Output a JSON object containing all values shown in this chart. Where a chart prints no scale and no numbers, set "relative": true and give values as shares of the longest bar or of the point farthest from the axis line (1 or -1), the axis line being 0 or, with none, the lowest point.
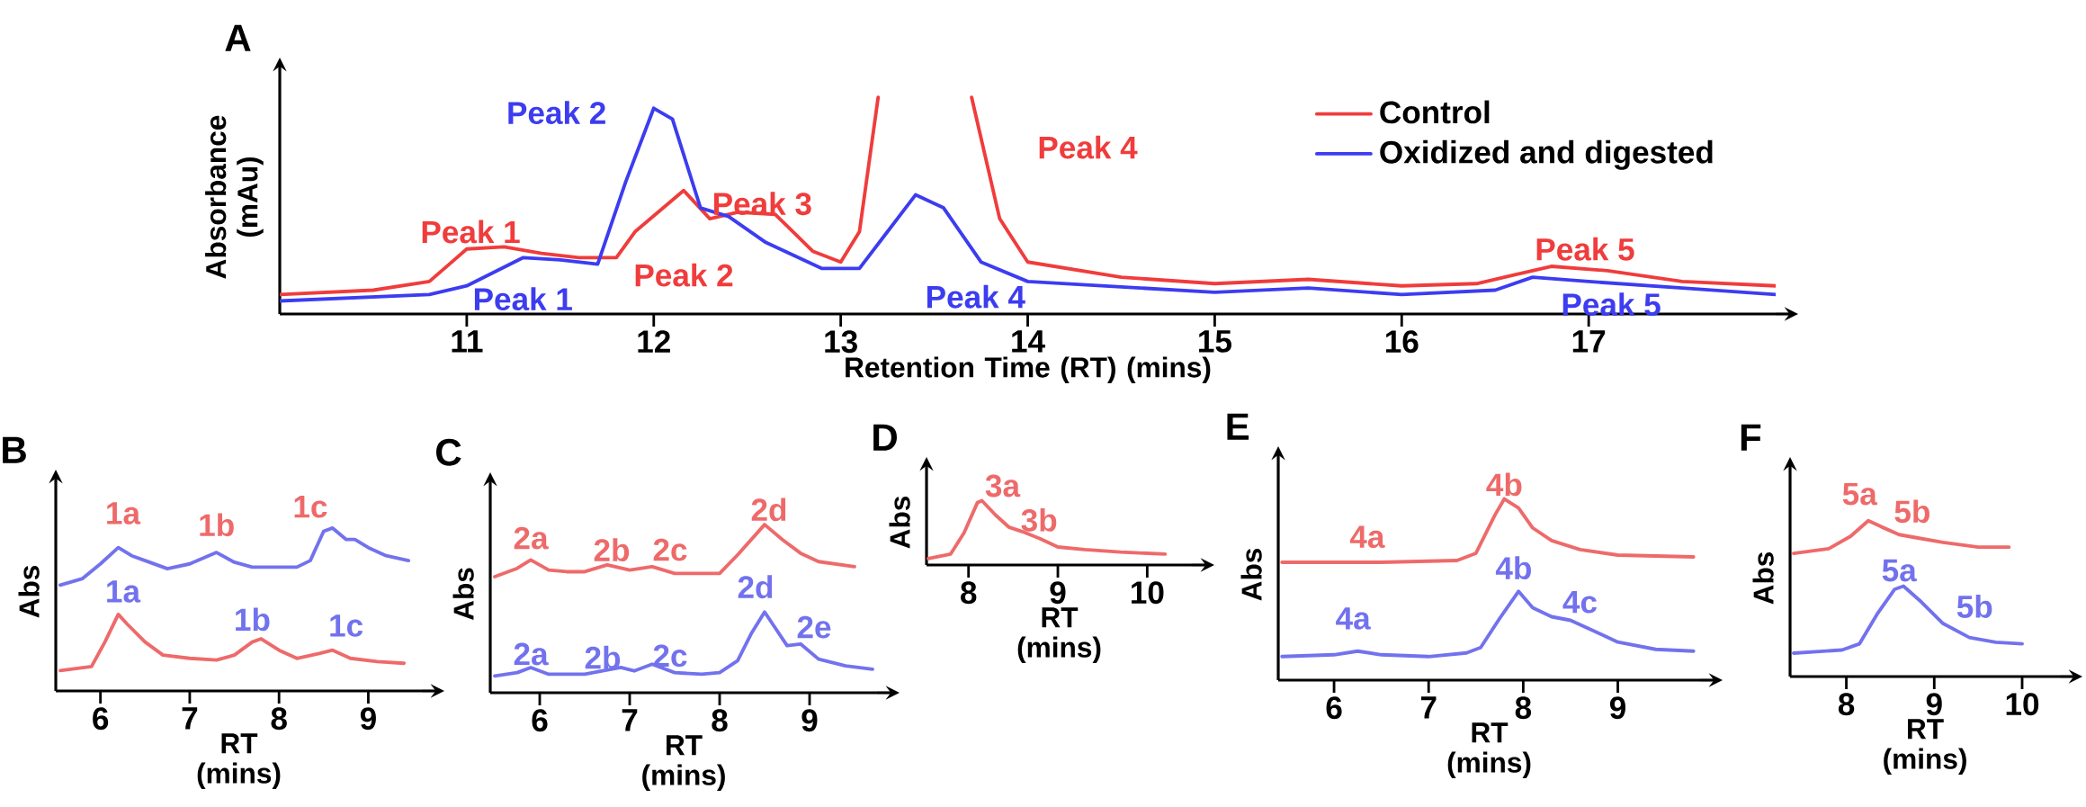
{
  "chart_data": [
    {
      "type": "line",
      "title": "A",
      "xlabel": "Retention Time (RT) (mins)",
      "ylabel": "Absorbance (mAu)",
      "relative": true,
      "xlim": [
        10,
        18
      ],
      "xticks": [
        11,
        12,
        13,
        14,
        15,
        16,
        17
      ],
      "legend": "top right",
      "series": [
        {
          "name": "Control",
          "color": "#f03c3c",
          "x": [
            10,
            10.5,
            10.8,
            11.0,
            11.2,
            11.4,
            11.6,
            11.8,
            11.9,
            12.16,
            12.3,
            12.45,
            12.65,
            12.85,
            13.0,
            13.1,
            13.2,
            13.45,
            13.7,
            13.85,
            14.0,
            14.5,
            15.0,
            15.5,
            16.0,
            16.4,
            16.6,
            16.8,
            17.1,
            17.5,
            18
          ],
          "values": [
            0.09,
            0.11,
            0.15,
            0.3,
            0.31,
            0.28,
            0.26,
            0.26,
            0.38,
            0.57,
            0.44,
            0.47,
            0.46,
            0.29,
            0.24,
            0.38,
            1.0,
            null,
            1.0,
            0.44,
            0.24,
            0.17,
            0.14,
            0.16,
            0.13,
            0.14,
            0.18,
            0.22,
            0.2,
            0.15,
            0.13
          ]
        },
        {
          "name": "Oxidized and digested",
          "color": "#3c3cf0",
          "x": [
            10,
            10.8,
            11.0,
            11.3,
            11.5,
            11.7,
            11.85,
            12.0,
            12.1,
            12.25,
            12.4,
            12.6,
            12.9,
            13.1,
            13.25,
            13.4,
            13.55,
            13.75,
            14.0,
            15.0,
            15.5,
            16.0,
            16.5,
            16.7,
            17.0,
            17.5,
            18
          ],
          "values": [
            0.06,
            0.09,
            0.13,
            0.26,
            0.25,
            0.23,
            0.61,
            0.95,
            0.9,
            0.49,
            0.45,
            0.33,
            0.21,
            0.21,
            0.38,
            0.55,
            0.49,
            0.24,
            0.15,
            0.1,
            0.12,
            0.09,
            0.11,
            0.17,
            0.15,
            0.12,
            0.09
          ]
        }
      ],
      "annotations": [
        "Peak 1",
        "Peak 1",
        "Peak 2",
        "Peak 2",
        "Peak 3",
        "Peak 4",
        "Peak 4",
        "Peak 5",
        "Peak 5"
      ]
    },
    {
      "type": "line",
      "title": "B",
      "xlabel": "RT (mins)",
      "ylabel": "Abs",
      "relative": true,
      "xlim": [
        5.5,
        9.6
      ],
      "xticks": [
        6,
        7,
        8,
        9
      ],
      "series": [
        {
          "color": "#7272ee",
          "x": [
            5.55,
            5.8,
            6.0,
            6.2,
            6.35,
            6.5,
            6.75,
            7.0,
            7.3,
            7.5,
            7.7,
            7.9,
            8.2,
            8.35,
            8.5,
            8.6,
            8.75,
            8.85,
            9.0,
            9.2,
            9.45
          ],
          "values": [
            0.65,
            0.69,
            0.78,
            0.88,
            0.83,
            0.8,
            0.75,
            0.78,
            0.85,
            0.79,
            0.76,
            0.76,
            0.76,
            0.8,
            0.98,
            1.0,
            0.93,
            0.93,
            0.88,
            0.83,
            0.8
          ]
        },
        {
          "color": "#ee6a6a",
          "x": [
            5.55,
            5.9,
            6.05,
            6.2,
            6.3,
            6.5,
            6.7,
            7.0,
            7.3,
            7.5,
            7.7,
            7.8,
            8.0,
            8.2,
            8.45,
            8.6,
            8.8,
            9.1,
            9.4
          ],
          "values": [
            0.125,
            0.15,
            0.3,
            0.47,
            0.41,
            0.3,
            0.22,
            0.2,
            0.19,
            0.22,
            0.3,
            0.32,
            0.25,
            0.2,
            0.23,
            0.25,
            0.2,
            0.18,
            0.17
          ]
        }
      ],
      "annotations": [
        "1a",
        "1b",
        "1c",
        "1a",
        "1b",
        "1c"
      ]
    },
    {
      "type": "line",
      "title": "C",
      "xlabel": "RT (mins)",
      "ylabel": "Abs",
      "relative": true,
      "xlim": [
        5.45,
        9.75
      ],
      "xticks": [
        6,
        7,
        8,
        9
      ],
      "series": [
        {
          "color": "#ee6a6a",
          "x": [
            5.5,
            5.75,
            5.9,
            6.1,
            6.3,
            6.5,
            6.75,
            7.0,
            7.25,
            7.5,
            8.0,
            8.2,
            8.5,
            8.7,
            8.9,
            9.1,
            9.5
          ],
          "values": [
            0.69,
            0.74,
            0.79,
            0.73,
            0.72,
            0.72,
            0.76,
            0.73,
            0.75,
            0.71,
            0.71,
            0.82,
            1.0,
            0.91,
            0.83,
            0.78,
            0.75
          ]
        },
        {
          "color": "#7272ee",
          "x": [
            5.5,
            5.75,
            5.9,
            6.1,
            6.5,
            6.9,
            7.05,
            7.25,
            7.5,
            7.8,
            8.0,
            8.2,
            8.35,
            8.5,
            8.6,
            8.75,
            8.9,
            9.1,
            9.4,
            9.7
          ],
          "values": [
            0.1,
            0.12,
            0.15,
            0.11,
            0.11,
            0.15,
            0.13,
            0.17,
            0.12,
            0.11,
            0.12,
            0.19,
            0.35,
            0.48,
            0.4,
            0.28,
            0.29,
            0.2,
            0.16,
            0.14
          ]
        }
      ],
      "annotations": [
        "2a",
        "2b",
        "2c",
        "2d",
        "2a",
        "2b",
        "2c",
        "2d",
        "2e"
      ]
    },
    {
      "type": "line",
      "title": "D",
      "xlabel": "RT (mins)",
      "ylabel": "Abs",
      "relative": true,
      "xlim": [
        7.53,
        10.5
      ],
      "xticks": [
        8,
        9,
        10
      ],
      "series": [
        {
          "color": "#ee6a6a",
          "x": [
            7.55,
            7.8,
            7.95,
            8.1,
            8.15,
            8.3,
            8.45,
            8.6,
            8.8,
            9.0,
            9.3,
            9.7,
            10.2
          ],
          "values": [
            0.1,
            0.17,
            0.5,
            0.97,
            1.0,
            0.78,
            0.59,
            0.52,
            0.41,
            0.28,
            0.24,
            0.2,
            0.17
          ]
        }
      ],
      "annotations": [
        "3a",
        "3b"
      ]
    },
    {
      "type": "line",
      "title": "E",
      "xlabel": "RT (mins)",
      "ylabel": "Abs",
      "relative": true,
      "xlim": [
        5.41,
        9.87
      ],
      "xticks": [
        6,
        7,
        8,
        9
      ],
      "series": [
        {
          "color": "#ee6a6a",
          "x": [
            5.45,
            6.5,
            7.3,
            7.5,
            7.7,
            7.8,
            7.95,
            8.1,
            8.3,
            8.6,
            9.0,
            9.8
          ],
          "values": [
            0.65,
            0.65,
            0.66,
            0.7,
            0.91,
            1.0,
            0.95,
            0.84,
            0.77,
            0.72,
            0.69,
            0.68
          ]
        },
        {
          "color": "#7272ee",
          "x": [
            5.45,
            6.0,
            6.25,
            6.5,
            7.0,
            7.4,
            7.55,
            7.75,
            7.95,
            8.1,
            8.3,
            8.5,
            8.75,
            9.0,
            9.4,
            9.8
          ],
          "values": [
            0.13,
            0.14,
            0.16,
            0.14,
            0.13,
            0.15,
            0.18,
            0.34,
            0.49,
            0.4,
            0.35,
            0.33,
            0.27,
            0.21,
            0.17,
            0.16
          ]
        }
      ],
      "annotations": [
        "4a",
        "4b",
        "4a",
        "4b",
        "4c"
      ]
    },
    {
      "type": "line",
      "title": "F",
      "xlabel": "RT (mins)",
      "ylabel": "Abs",
      "relative": true,
      "xlim": [
        7.36,
        10.43
      ],
      "xticks": [
        8,
        9,
        10
      ],
      "series": [
        {
          "color": "#ee6a6a",
          "x": [
            7.4,
            7.8,
            8.05,
            8.25,
            8.4,
            8.6,
            8.8,
            9.1,
            9.5,
            9.85
          ],
          "values": [
            0.79,
            0.82,
            0.9,
            1.0,
            0.96,
            0.91,
            0.89,
            0.86,
            0.83,
            0.83
          ]
        },
        {
          "color": "#7272ee",
          "x": [
            7.4,
            7.95,
            8.15,
            8.35,
            8.55,
            8.65,
            8.85,
            9.1,
            9.4,
            9.7,
            10.0
          ],
          "values": [
            0.15,
            0.17,
            0.21,
            0.4,
            0.56,
            0.58,
            0.48,
            0.34,
            0.25,
            0.22,
            0.21
          ]
        }
      ],
      "annotations": [
        "5a",
        "5b",
        "5a",
        "5b"
      ]
    }
  ]
}
